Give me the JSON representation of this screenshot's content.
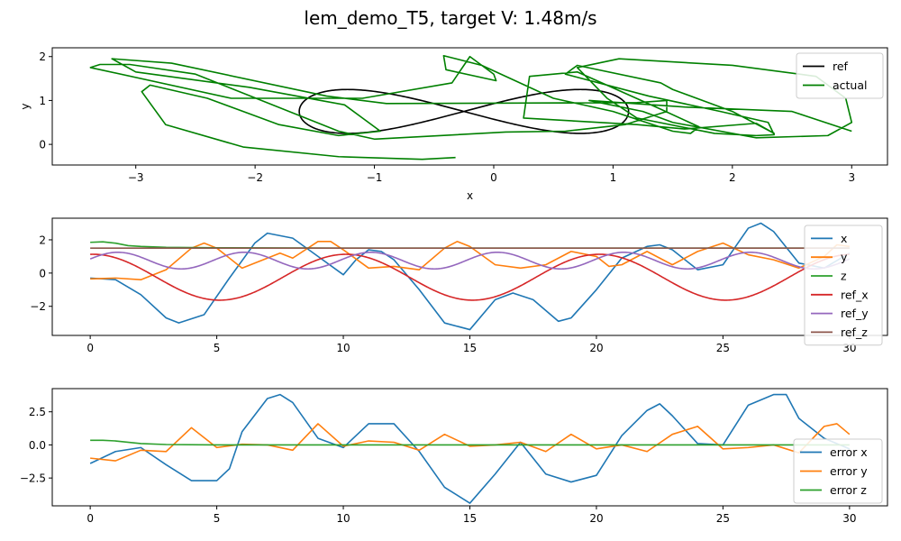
{
  "figure": {
    "title": "lem_demo_T5, target V: 1.48m/s"
  },
  "chart_data": [
    {
      "type": "line",
      "id": "xy",
      "title": "",
      "xlabel": "x",
      "ylabel": "y",
      "xlim": [
        -3.7,
        3.3
      ],
      "ylim": [
        -0.47,
        2.2
      ],
      "xticks": [
        -3,
        -2,
        -1,
        0,
        1,
        2,
        3
      ],
      "yticks": [
        0,
        1,
        2
      ],
      "legend": {
        "position": "top-right"
      },
      "series": [
        {
          "name": "ref",
          "color": "#000000",
          "kind": "figure8",
          "center": [
            -0.25,
            0.75
          ],
          "ax": 1.38,
          "ay": 0.5
        },
        {
          "name": "actual",
          "color": "#008000",
          "points": [
            [
              -0.32,
              -0.3
            ],
            [
              -0.6,
              -0.34
            ],
            [
              -1.3,
              -0.28
            ],
            [
              -2.1,
              -0.06
            ],
            [
              -2.75,
              0.45
            ],
            [
              -2.95,
              1.2
            ],
            [
              -2.88,
              1.35
            ],
            [
              -2.4,
              1.05
            ],
            [
              -1.8,
              0.45
            ],
            [
              -1.3,
              0.2
            ],
            [
              -0.95,
              0.3
            ],
            [
              -1.25,
              0.9
            ],
            [
              -1.45,
              1.0
            ],
            [
              -2.05,
              1.3
            ],
            [
              -3.0,
              1.65
            ],
            [
              -3.2,
              1.95
            ],
            [
              -2.7,
              1.85
            ],
            [
              -1.4,
              1.1
            ],
            [
              -0.9,
              0.93
            ],
            [
              1.2,
              0.95
            ],
            [
              1.45,
              1.0
            ],
            [
              1.45,
              0.75
            ],
            [
              1.1,
              0.45
            ],
            [
              0.6,
              0.3
            ],
            [
              0.1,
              0.28
            ],
            [
              -1.0,
              0.12
            ],
            [
              -1.3,
              0.3
            ],
            [
              -2.5,
              1.6
            ],
            [
              -3.05,
              1.82
            ],
            [
              -3.3,
              1.82
            ],
            [
              -3.38,
              1.75
            ],
            [
              -2.2,
              1.05
            ],
            [
              -1.1,
              1.05
            ],
            [
              -0.35,
              1.4
            ],
            [
              -0.2,
              2.0
            ],
            [
              0.0,
              1.6
            ],
            [
              0.02,
              1.45
            ],
            [
              -0.4,
              1.7
            ],
            [
              -0.42,
              2.02
            ],
            [
              -0.1,
              1.8
            ],
            [
              0.5,
              1.05
            ],
            [
              1.0,
              0.75
            ],
            [
              1.5,
              0.3
            ],
            [
              1.65,
              0.25
            ],
            [
              1.72,
              0.4
            ],
            [
              1.4,
              0.8
            ],
            [
              0.7,
              1.65
            ],
            [
              0.3,
              1.55
            ],
            [
              0.25,
              0.6
            ],
            [
              1.2,
              0.45
            ],
            [
              1.6,
              0.35
            ],
            [
              2.2,
              0.48
            ],
            [
              2.35,
              0.25
            ],
            [
              2.0,
              0.75
            ],
            [
              1.5,
              1.25
            ],
            [
              1.4,
              1.4
            ],
            [
              0.7,
              1.8
            ],
            [
              0.6,
              1.6
            ],
            [
              1.3,
              1.1
            ],
            [
              1.9,
              0.75
            ],
            [
              2.3,
              0.5
            ],
            [
              2.35,
              0.22
            ],
            [
              2.2,
              0.2
            ],
            [
              1.85,
              0.25
            ],
            [
              1.2,
              0.6
            ],
            [
              0.95,
              1.05
            ],
            [
              0.7,
              1.75
            ],
            [
              1.05,
              1.95
            ],
            [
              2.0,
              1.8
            ],
            [
              2.7,
              1.55
            ],
            [
              2.95,
              1.05
            ],
            [
              3.0,
              0.5
            ],
            [
              2.8,
              0.2
            ],
            [
              2.2,
              0.15
            ],
            [
              1.5,
              0.5
            ],
            [
              1.25,
              0.75
            ],
            [
              0.8,
              1.0
            ],
            [
              1.6,
              0.85
            ],
            [
              2.5,
              0.75
            ],
            [
              3.0,
              0.3
            ]
          ]
        }
      ]
    },
    {
      "type": "line",
      "id": "pos",
      "title": "",
      "xlabel": "",
      "ylabel": "",
      "xlim": [
        -1.5,
        31.5
      ],
      "ylim": [
        -3.75,
        3.3
      ],
      "xticks": [
        0,
        5,
        10,
        15,
        20,
        25,
        30
      ],
      "yticks": [
        -2,
        0,
        2
      ],
      "legend": {
        "position": "right"
      },
      "series": [
        {
          "name": "x",
          "color": "#1f77b4",
          "t": [
            0,
            1,
            2,
            3,
            3.5,
            4.5,
            5.5,
            6.5,
            7,
            8,
            9,
            10,
            10.5,
            11,
            11.5,
            12,
            13,
            14,
            15,
            16,
            16.7,
            17.5,
            18.5,
            19,
            20,
            21,
            22,
            22.5,
            23,
            24,
            25,
            25.5,
            26,
            26.5,
            27,
            28,
            29,
            30
          ],
          "y": [
            -0.3,
            -0.4,
            -1.3,
            -2.7,
            -3.0,
            -2.5,
            -0.3,
            1.8,
            2.4,
            2.1,
            1.0,
            -0.1,
            0.8,
            1.4,
            1.3,
            0.8,
            -1.0,
            -3.0,
            -3.4,
            -1.6,
            -1.2,
            -1.6,
            -2.9,
            -2.7,
            -1.0,
            0.9,
            1.6,
            1.7,
            1.4,
            0.2,
            0.5,
            1.6,
            2.7,
            3.0,
            2.5,
            0.6,
            0.3,
            1.2
          ]
        },
        {
          "name": "y",
          "color": "#ff7f0e",
          "t": [
            0,
            1,
            2,
            3,
            4,
            4.5,
            5,
            6,
            7,
            7.5,
            8,
            9,
            9.5,
            10,
            11,
            12,
            13,
            14,
            14.5,
            15,
            16,
            17,
            18,
            19,
            20,
            20.5,
            21,
            22,
            23,
            24,
            25,
            26,
            27,
            28,
            29,
            29.5,
            30
          ],
          "y": [
            -0.35,
            -0.3,
            -0.4,
            0.2,
            1.5,
            1.8,
            1.5,
            0.3,
            0.9,
            1.2,
            0.9,
            1.9,
            1.9,
            1.4,
            0.3,
            0.4,
            0.2,
            1.5,
            1.9,
            1.6,
            0.5,
            0.3,
            0.5,
            1.3,
            1.0,
            0.4,
            0.5,
            1.3,
            0.5,
            1.3,
            1.8,
            1.1,
            0.8,
            0.3,
            1.0,
            1.7,
            1.6
          ]
        },
        {
          "name": "z",
          "color": "#2ca02c",
          "t": [
            0,
            0.5,
            1,
            1.5,
            2,
            3,
            5,
            10,
            15,
            20,
            25,
            30
          ],
          "y": [
            1.85,
            1.88,
            1.8,
            1.65,
            1.6,
            1.55,
            1.52,
            1.5,
            1.5,
            1.5,
            1.5,
            1.5
          ]
        },
        {
          "name": "ref_x",
          "color": "#d62728",
          "kind": "sin",
          "amp": 1.38,
          "period": 10,
          "phase": 1.5,
          "offset": -0.25,
          "tmax": 30
        },
        {
          "name": "ref_y",
          "color": "#9467bd",
          "kind": "sin",
          "amp": 0.5,
          "period": 5,
          "phase": 0.2,
          "offset": 0.75,
          "tmax": 30
        },
        {
          "name": "ref_z",
          "color": "#8c564b",
          "kind": "const",
          "value": 1.5,
          "tmax": 30
        }
      ]
    },
    {
      "type": "line",
      "id": "err",
      "title": "",
      "xlabel": "",
      "ylabel": "",
      "xlim": [
        -1.5,
        31.5
      ],
      "ylim": [
        -4.6,
        4.25
      ],
      "xticks": [
        0,
        5,
        10,
        15,
        20,
        25,
        30
      ],
      "yticks": [
        -2.5,
        0.0,
        2.5
      ],
      "ytick_labels": [
        "−2.5",
        "0.0",
        "2.5"
      ],
      "legend": {
        "position": "lower-right"
      },
      "series": [
        {
          "name": "error x",
          "color": "#1f77b4",
          "t": [
            0,
            1,
            2,
            3,
            4,
            5,
            5.5,
            6,
            7,
            7.5,
            8,
            9,
            10,
            11,
            12,
            13,
            14,
            15,
            16,
            17,
            18,
            19,
            20,
            21,
            22,
            22.5,
            23,
            24,
            25,
            26,
            27,
            27.5,
            28,
            29,
            30
          ],
          "y": [
            -1.4,
            -0.5,
            -0.2,
            -1.5,
            -2.7,
            -2.7,
            -1.8,
            1.0,
            3.5,
            3.8,
            3.2,
            0.5,
            -0.2,
            1.6,
            1.6,
            -0.5,
            -3.2,
            -4.4,
            -2.2,
            0.2,
            -2.2,
            -2.8,
            -2.3,
            0.7,
            2.6,
            3.1,
            2.2,
            0.1,
            0.0,
            3.0,
            3.8,
            3.8,
            2.0,
            0.5,
            -0.3
          ]
        },
        {
          "name": "error y",
          "color": "#ff7f0e",
          "t": [
            0,
            1,
            2,
            3,
            4,
            5,
            6,
            7,
            8,
            9,
            10,
            11,
            12,
            13,
            14,
            15,
            16,
            17,
            18,
            19,
            20,
            21,
            22,
            23,
            24,
            25,
            26,
            27,
            28,
            29,
            29.5,
            30
          ],
          "y": [
            -1.0,
            -1.2,
            -0.4,
            -0.5,
            1.3,
            -0.2,
            0.05,
            0.0,
            -0.4,
            1.6,
            -0.1,
            0.3,
            0.2,
            -0.4,
            0.8,
            -0.1,
            0.0,
            0.2,
            -0.5,
            0.8,
            -0.3,
            0.0,
            -0.5,
            0.8,
            1.4,
            -0.3,
            -0.2,
            0.0,
            -0.6,
            1.4,
            1.6,
            0.8
          ]
        },
        {
          "name": "error z",
          "color": "#2ca02c",
          "t": [
            0,
            0.5,
            1,
            2,
            3,
            5,
            10,
            15,
            20,
            25,
            30
          ],
          "y": [
            0.35,
            0.35,
            0.3,
            0.1,
            0.03,
            0.0,
            0.0,
            0.0,
            0.0,
            0.0,
            0.0
          ]
        }
      ]
    }
  ]
}
